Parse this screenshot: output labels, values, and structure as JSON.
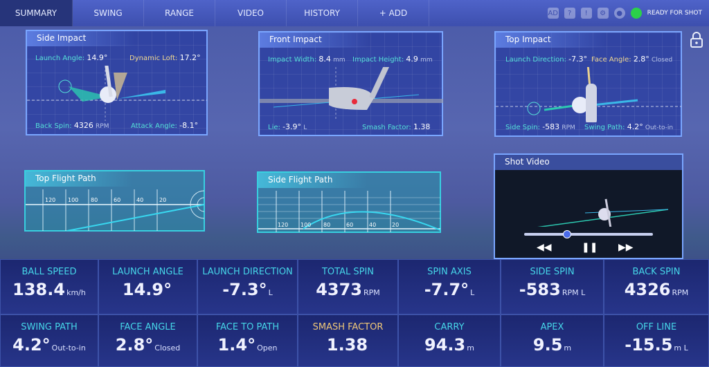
{
  "nav": {
    "tabs": [
      "SUMMARY",
      "SWING",
      "RANGE",
      "VIDEO",
      "HISTORY",
      "+ ADD"
    ],
    "active": "SUMMARY",
    "status": "READY FOR SHOT",
    "status_color": "#2bd14a",
    "icons": [
      "ad-icon",
      "help-icon",
      "warning-icon",
      "gear-icon",
      "controller-icon"
    ]
  },
  "side_impact": {
    "title": "Side Impact",
    "launch_angle_label": "Launch Angle:",
    "launch_angle": "14.9°",
    "dynamic_loft_label": "Dynamic Loft:",
    "dynamic_loft": "17.2°",
    "back_spin_label": "Back Spin:",
    "back_spin": "4326",
    "back_spin_unit": "RPM",
    "attack_angle_label": "Attack Angle:",
    "attack_angle": "-8.1°"
  },
  "front_impact": {
    "title": "Front Impact",
    "width_label": "Impact Width:",
    "width": "8.4",
    "width_unit": "mm",
    "height_label": "Impact Height:",
    "height": "4.9",
    "height_unit": "mm",
    "lie_label": "Lie:",
    "lie": "-3.9°",
    "lie_dir": "L",
    "smash_label": "Smash Factor:",
    "smash": "1.38"
  },
  "top_impact": {
    "title": "Top Impact",
    "launch_dir_label": "Launch Direction:",
    "launch_dir": "-7.3°",
    "face_label": "Face Angle:",
    "face": "2.8°",
    "face_note": "Closed",
    "side_spin_label": "Side Spin:",
    "side_spin": "-583",
    "side_spin_unit": "RPM",
    "path_label": "Swing Path:",
    "path": "4.2°",
    "path_note": "Out-to-in"
  },
  "top_flight": {
    "title": "Top Flight Path",
    "ticks": [
      "120",
      "100",
      "80",
      "60",
      "40",
      "20"
    ]
  },
  "side_flight": {
    "title": "Side Flight Path",
    "ticks": [
      "120",
      "100",
      "80",
      "60",
      "40",
      "20"
    ]
  },
  "video": {
    "title": "Shot Video",
    "controls": {
      "rewind": "◀◀",
      "pause": "❚❚",
      "forward": "▶▶"
    },
    "progress": 0.3
  },
  "stats": [
    {
      "label": "BALL SPEED",
      "value": "138.4",
      "unit": "km/h"
    },
    {
      "label": "LAUNCH ANGLE",
      "value": "14.9°",
      "unit": ""
    },
    {
      "label": "LAUNCH DIRECTION",
      "value": "-7.3°",
      "unit": "L"
    },
    {
      "label": "TOTAL SPIN",
      "value": "4373",
      "unit": "RPM"
    },
    {
      "label": "SPIN AXIS",
      "value": "-7.7°",
      "unit": "L"
    },
    {
      "label": "SIDE SPIN",
      "value": "-583",
      "unit": "RPM L"
    },
    {
      "label": "BACK SPIN",
      "value": "4326",
      "unit": "RPM"
    },
    {
      "label": "SWING PATH",
      "value": "4.2°",
      "unit": "Out-to-in"
    },
    {
      "label": "FACE ANGLE",
      "value": "2.8°",
      "unit": "Closed"
    },
    {
      "label": "FACE TO PATH",
      "value": "1.4°",
      "unit": "Open"
    },
    {
      "label": "SMASH FACTOR",
      "value": "1.38",
      "unit": "",
      "highlight": true
    },
    {
      "label": "CARRY",
      "value": "94.3",
      "unit": "m"
    },
    {
      "label": "APEX",
      "value": "9.5",
      "unit": "m"
    },
    {
      "label": "OFF LINE",
      "value": "-15.5",
      "unit": "m L"
    }
  ]
}
